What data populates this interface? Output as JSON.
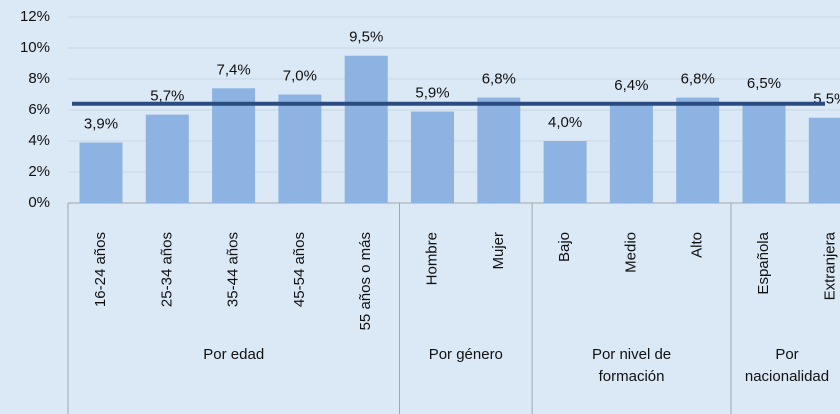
{
  "chart_data": {
    "type": "bar",
    "categories": [
      "16-24 años",
      "25-34 años",
      "35-44 años",
      "45-54 años",
      "55 años o más",
      "Hombre",
      "Mujer",
      "Bajo",
      "Medio",
      "Alto",
      "Española",
      "Extranjera"
    ],
    "values": [
      3.9,
      5.7,
      7.4,
      7.0,
      9.5,
      5.9,
      6.8,
      4.0,
      6.4,
      6.8,
      6.5,
      5.5
    ],
    "value_labels": [
      "3,9%",
      "5,7%",
      "7,4%",
      "7,0%",
      "9,5%",
      "5,9%",
      "6,8%",
      "4,0%",
      "6,4%",
      "6,8%",
      "6,5%",
      "5,5%"
    ],
    "color": "#8db3e2",
    "groups": [
      [
        "Por edad"
      ],
      [
        "Por género"
      ],
      [
        "Por nivel de",
        "formación"
      ],
      [
        "Por",
        "nacionalidad"
      ]
    ],
    "reference_line": {
      "value": 6.4,
      "color": "#2b4c80"
    },
    "ylim": [
      0,
      12
    ],
    "yticks": [
      {
        "value": 0,
        "label": "0%"
      },
      {
        "value": 2,
        "label": "2%"
      },
      {
        "value": 4,
        "label": "4%"
      },
      {
        "value": 6,
        "label": "6%"
      },
      {
        "value": 8,
        "label": "8%"
      },
      {
        "value": 10,
        "label": "10%"
      },
      {
        "value": 12,
        "label": "12%"
      }
    ],
    "grid": true
  }
}
